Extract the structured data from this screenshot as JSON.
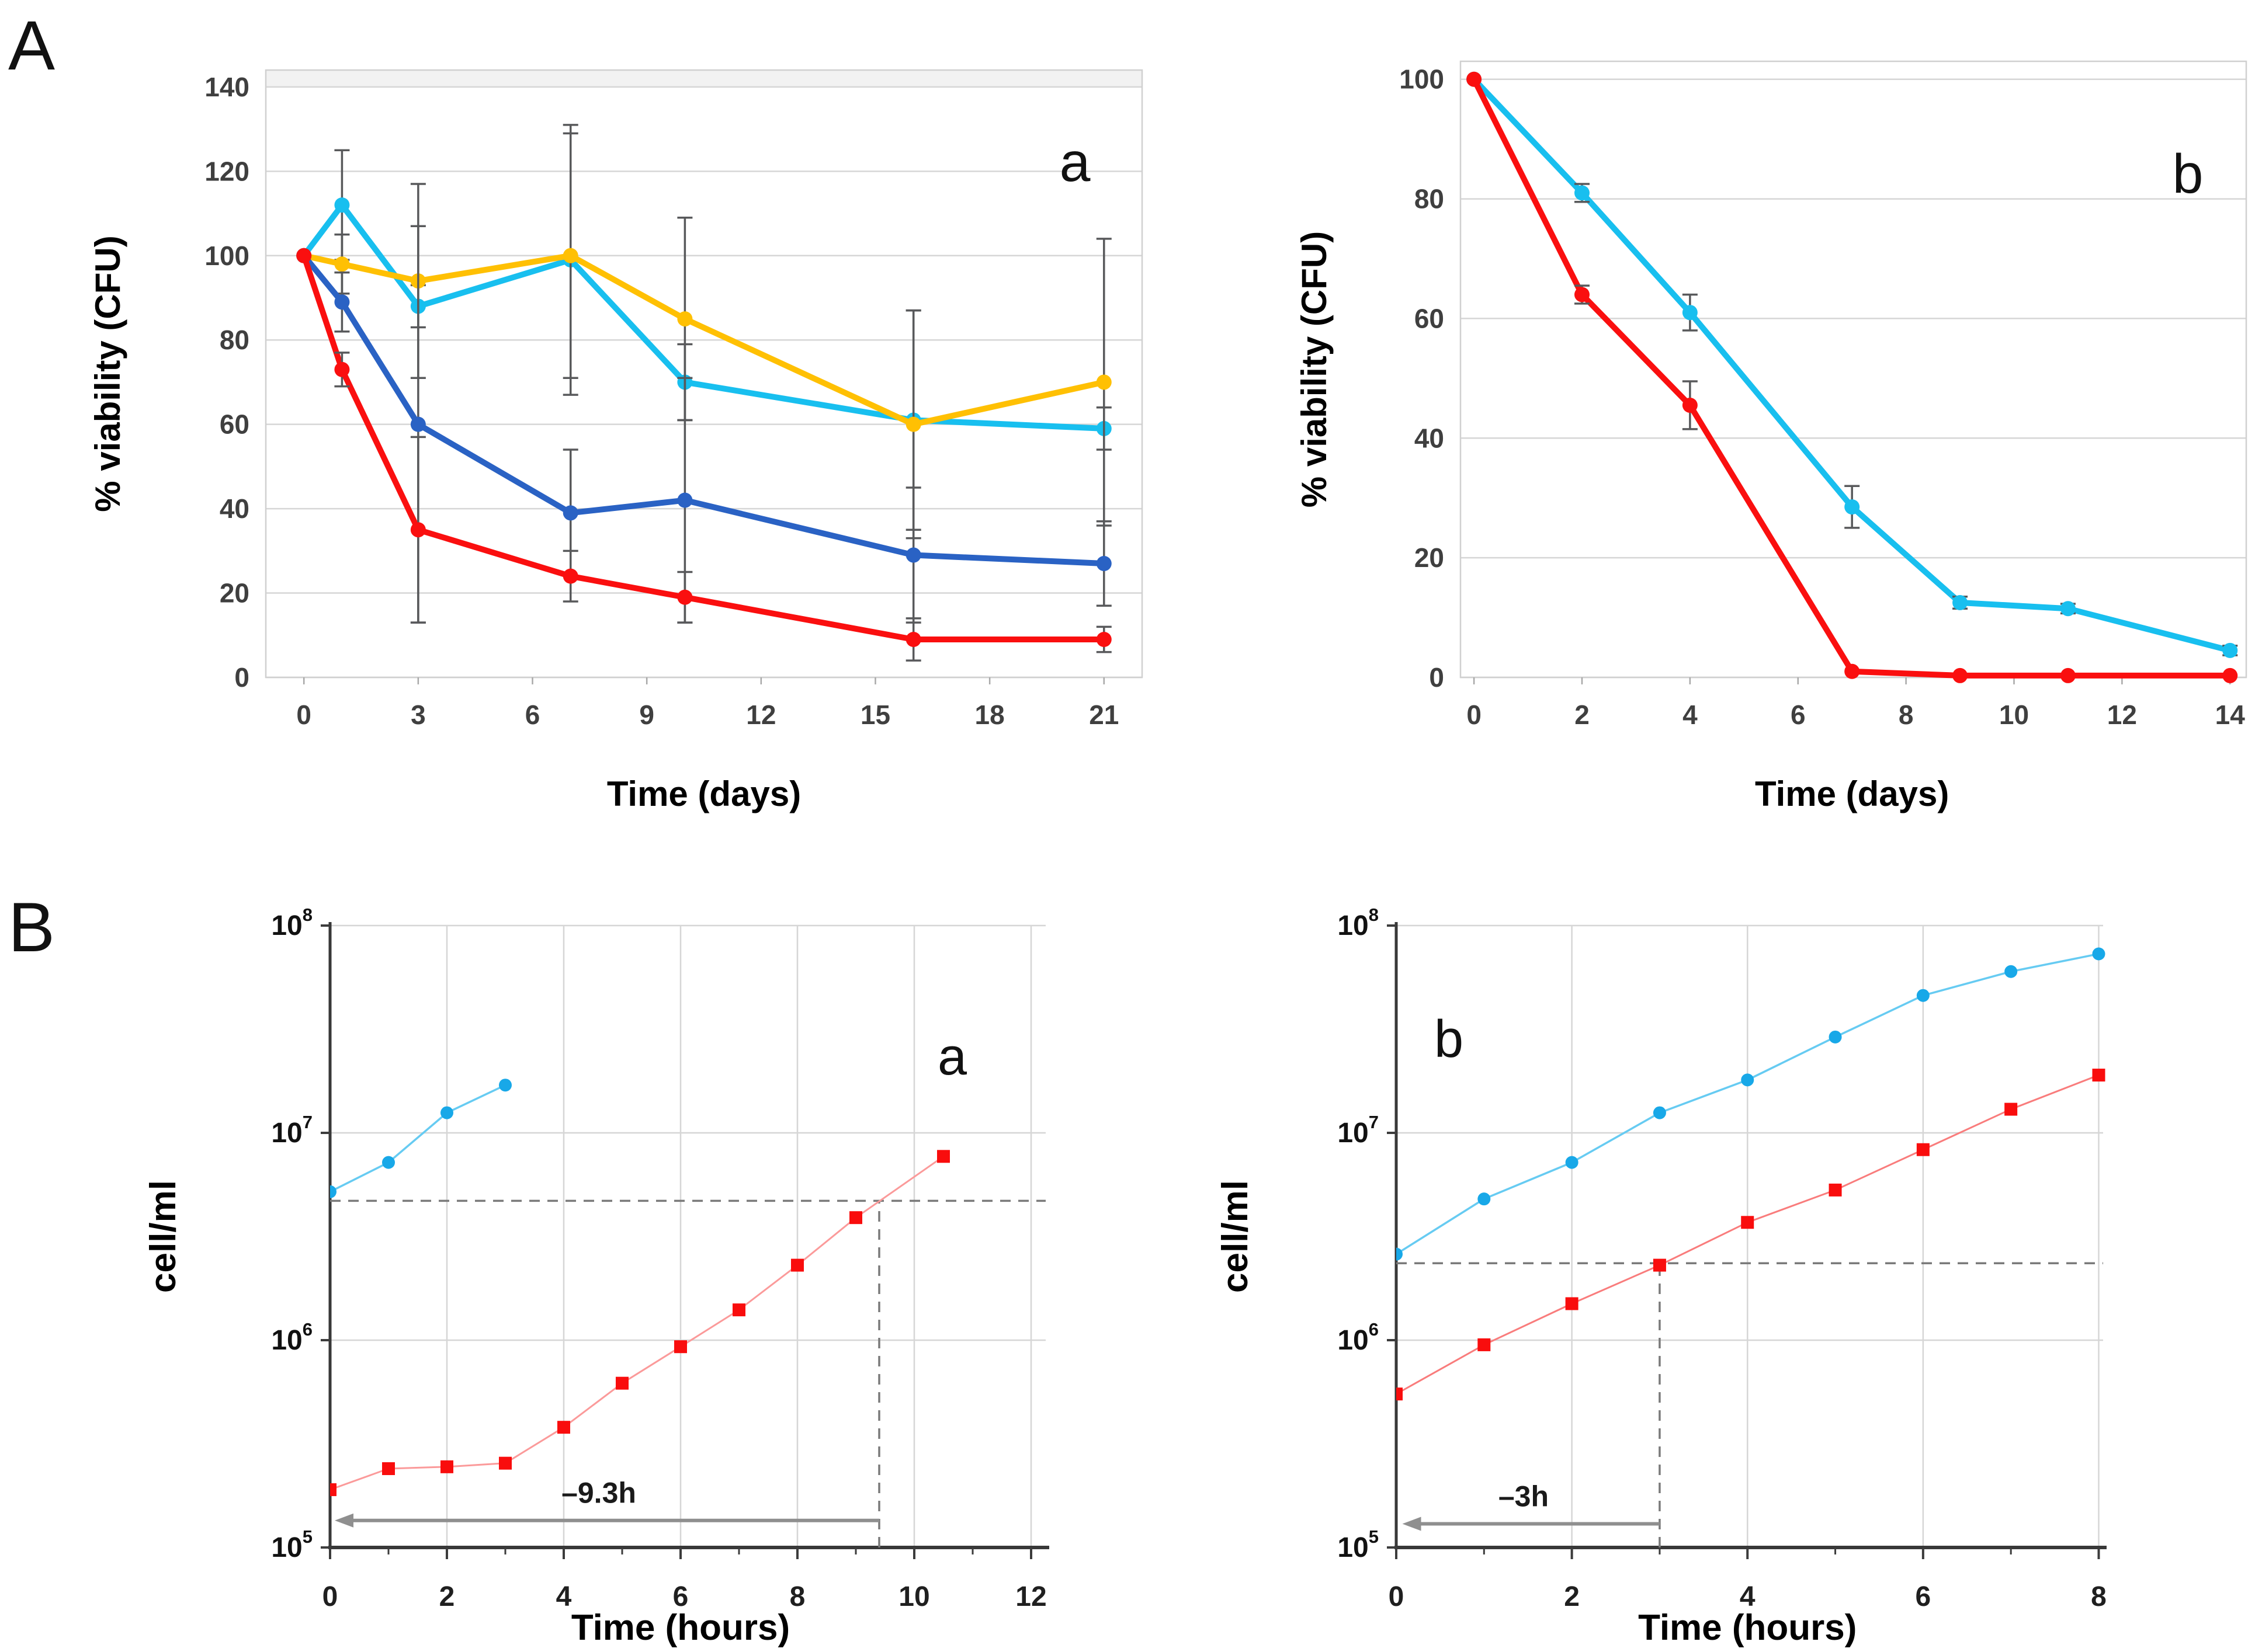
{
  "figure": {
    "section_a_label": "A",
    "section_b_label": "B"
  },
  "chart_data": [
    {
      "id": "viability-a",
      "panel_letter": "a",
      "type": "line",
      "title": "",
      "xlabel": "Time (days)",
      "ylabel": "% viability (CFU)",
      "yscale": "linear",
      "xlim": [
        -1,
        22
      ],
      "ylim": [
        0,
        144
      ],
      "x_ticks": [
        0,
        3,
        6,
        9,
        12,
        15,
        18,
        21
      ],
      "y_ticks": [
        0,
        20,
        40,
        60,
        80,
        100,
        120,
        140
      ],
      "grid": "horizontal",
      "frame": "light-border",
      "top_strip_y": 140,
      "error_color": "#58595b",
      "series": [
        {
          "name": "light-blue-circles",
          "color": "#18bfef",
          "marker": "circle",
          "x": [
            0,
            1,
            3,
            7,
            10,
            16,
            21
          ],
          "y": [
            100,
            112,
            88,
            99,
            70,
            61,
            59
          ],
          "yerr": [
            0,
            13,
            5,
            32,
            9,
            26,
            5
          ]
        },
        {
          "name": "yellow-circles",
          "color": "#ffc003",
          "marker": "circle",
          "x": [
            0,
            1,
            3,
            7,
            10,
            16,
            21
          ],
          "y": [
            100,
            98,
            94,
            100,
            85,
            60,
            70
          ],
          "yerr": [
            0,
            7,
            23,
            29,
            24,
            27,
            34
          ]
        },
        {
          "name": "dark-blue-circles",
          "color": "#2a62c4",
          "marker": "circle",
          "x": [
            0,
            1,
            3,
            7,
            10,
            16,
            21
          ],
          "y": [
            100,
            89,
            60,
            39,
            42,
            29,
            27
          ],
          "yerr": [
            0,
            7,
            47,
            15,
            29,
            16,
            10
          ]
        },
        {
          "name": "red-circles",
          "color": "#fa0f0f",
          "marker": "circle",
          "x": [
            0,
            1,
            3,
            7,
            10,
            16,
            21
          ],
          "y": [
            100,
            73,
            35,
            24,
            19,
            9,
            9
          ],
          "yerr": [
            0,
            4,
            22,
            6,
            6,
            5,
            3
          ]
        }
      ]
    },
    {
      "id": "viability-b",
      "panel_letter": "b",
      "type": "line",
      "title": "",
      "xlabel": "Time (days)",
      "ylabel": "% viability (CFU)",
      "yscale": "linear",
      "xlim": [
        -0.25,
        14.3
      ],
      "ylim": [
        0,
        103
      ],
      "x_ticks": [
        0,
        2,
        4,
        6,
        8,
        10,
        12,
        14
      ],
      "y_ticks": [
        0,
        20,
        40,
        60,
        80,
        100
      ],
      "grid": "horizontal",
      "frame": "light-border",
      "error_color": "#58595b",
      "series": [
        {
          "name": "light-blue-circles",
          "color": "#18bfef",
          "marker": "circle",
          "x": [
            0,
            2,
            4,
            7,
            9,
            11,
            14
          ],
          "y": [
            100,
            81,
            61,
            28.5,
            12.5,
            11.5,
            4.5
          ],
          "yerr": [
            0,
            1.5,
            3,
            3.5,
            1,
            0.8,
            0.8
          ]
        },
        {
          "name": "red-circles",
          "color": "#fa0f0f",
          "marker": "circle",
          "x": [
            0,
            2,
            4,
            7,
            9,
            11,
            14
          ],
          "y": [
            100,
            64,
            45.5,
            1,
            0.3,
            0.3,
            0.3
          ],
          "yerr": [
            0,
            1.5,
            4,
            0,
            0,
            0,
            0
          ]
        }
      ]
    },
    {
      "id": "growth-a",
      "panel_letter": "a",
      "type": "line",
      "title": "",
      "xlabel": "Time (hours)",
      "ylabel": "cell/ml",
      "yscale": "log",
      "xlim": [
        0,
        12.25
      ],
      "ylim_exp": [
        5,
        8
      ],
      "x_ticks": [
        0,
        2,
        4,
        6,
        8,
        10,
        12
      ],
      "x_minor_ticks": [
        1,
        3,
        5,
        7,
        9,
        11
      ],
      "y_ticks_exp": [
        5,
        6,
        7,
        8
      ],
      "grid": "both",
      "frame": "axes",
      "series": [
        {
          "name": "blue-circles",
          "color": "#18a8e8",
          "line_color": "#66cbf2",
          "marker": "circle",
          "x": [
            0,
            1,
            2,
            3
          ],
          "y": [
            5200000,
            7200000,
            12500000,
            17000000
          ]
        },
        {
          "name": "red-squares",
          "color": "#f90d0d",
          "line_color": "#fb9a9a",
          "marker": "square",
          "x": [
            0,
            1,
            2,
            3,
            4,
            5,
            6,
            7,
            8,
            9,
            10.5
          ],
          "y": [
            190000,
            240000,
            245000,
            255000,
            380000,
            620000,
            930000,
            1400000,
            2300000,
            3900000,
            7700000
          ]
        }
      ],
      "annotations": {
        "hline": {
          "y": 4700000,
          "x0": 0,
          "x1": 12.25
        },
        "vline": {
          "x": 9.4,
          "y0": 100000,
          "y1": 4700000
        },
        "arrow": {
          "y": 135000,
          "x0": 9.4,
          "x1": 0.08,
          "label": "–9.3h",
          "label_x": 4.6
        }
      }
    },
    {
      "id": "growth-b",
      "panel_letter": "b",
      "type": "line",
      "title": "",
      "xlabel": "Time (hours)",
      "ylabel": "cell/ml",
      "yscale": "log",
      "xlim": [
        0,
        8.05
      ],
      "ylim_exp": [
        5,
        8
      ],
      "x_ticks": [
        0,
        2,
        4,
        6,
        8
      ],
      "x_minor_ticks": [
        1,
        3,
        5,
        7
      ],
      "y_ticks_exp": [
        5,
        6,
        7,
        8
      ],
      "grid": "both",
      "frame": "axes",
      "series": [
        {
          "name": "blue-circles",
          "color": "#18a8e8",
          "line_color": "#66cbf2",
          "marker": "circle",
          "x": [
            0,
            1,
            2,
            3,
            4,
            5,
            6,
            7,
            8
          ],
          "y": [
            2600000,
            4800000,
            7200000,
            12500000,
            18000000,
            29000000,
            46000000,
            60000000,
            73000000
          ]
        },
        {
          "name": "red-squares",
          "color": "#f90d0d",
          "line_color": "#f97c7c",
          "marker": "square",
          "x": [
            0,
            1,
            2,
            3,
            4,
            5,
            6,
            7,
            8
          ],
          "y": [
            550000,
            950000,
            1500000,
            2300000,
            3700000,
            5300000,
            8300000,
            13000000,
            19000000
          ]
        }
      ],
      "annotations": {
        "hline": {
          "y": 2350000,
          "x0": 0,
          "x1": 8.05
        },
        "vline": {
          "x": 3,
          "y0": 100000,
          "y1": 2350000
        },
        "arrow": {
          "y": 130000,
          "x0": 3,
          "x1": 0.07,
          "label": "–3h",
          "label_x": 1.45
        }
      }
    }
  ]
}
